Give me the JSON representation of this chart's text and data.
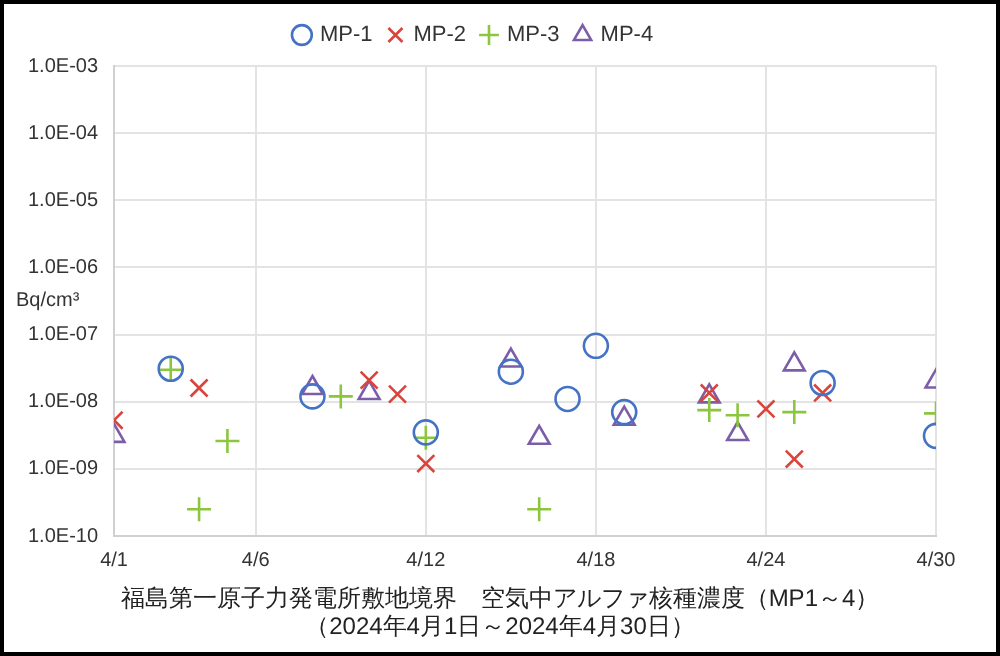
{
  "chart_data": {
    "type": "scatter",
    "title": "福島第一原子力発電所敷地境界　空気中アルファ核種濃度（MP1～4）",
    "subtitle": "（2024年4月1日～2024年4月30日）",
    "ylabel": "Bq/cm³",
    "series": [
      {
        "name": "MP-1",
        "color": "#4472c4",
        "marker": "circle",
        "x": [
          "--04-03",
          "--04-08",
          "--04-12",
          "--04-15",
          "--04-17",
          "--04-18",
          "--04-19",
          "--04-26",
          "--04-30"
        ],
        "values": [
          3.1e-08,
          1.2e-08,
          3.5e-09,
          2.8e-08,
          1.1e-08,
          6.8e-08,
          7e-09,
          1.9e-08,
          3.1e-09
        ]
      },
      {
        "name": "MP-2",
        "color": "#d9443c",
        "marker": "x",
        "x": [
          "--04-01",
          "--04-04",
          "--04-10",
          "--04-11",
          "--04-12",
          "--04-22",
          "--04-24",
          "--04-25",
          "--04-26"
        ],
        "values": [
          5.3e-09,
          1.6e-08,
          2.1e-08,
          1.3e-08,
          1.2e-09,
          1.35e-08,
          7.8e-09,
          1.4e-09,
          1.35e-08
        ]
      },
      {
        "name": "MP-3",
        "color": "#8cc63f",
        "marker": "cross",
        "x": [
          "--04-03",
          "--04-04",
          "--04-05",
          "--04-09",
          "--04-12",
          "--04-16",
          "--04-22",
          "--04-23",
          "--04-25",
          "--04-30"
        ],
        "values": [
          3e-08,
          2.5e-10,
          2.6e-09,
          1.2e-08,
          2.9e-09,
          2.5e-10,
          7.5e-09,
          6.3e-09,
          7e-09,
          6.7e-09
        ]
      },
      {
        "name": "MP-4",
        "color": "#7b5ea7",
        "marker": "triangle",
        "x": [
          "--04-01",
          "--04-08",
          "--04-10",
          "--04-15",
          "--04-16",
          "--04-19",
          "--04-22",
          "--04-23",
          "--04-25",
          "--04-30"
        ],
        "values": [
          3.1e-09,
          1.6e-08,
          1.35e-08,
          4.1e-08,
          2.9e-09,
          5.6e-09,
          1.2e-08,
          3.3e-09,
          3.6e-08,
          2e-08
        ]
      }
    ],
    "xlim": [
      "--04-01",
      "--04-30"
    ],
    "xticks": [
      {
        "value": "--04-01",
        "label": "4/1"
      },
      {
        "value": "--04-06",
        "label": "4/6"
      },
      {
        "value": "--04-12",
        "label": "4/12"
      },
      {
        "value": "--04-18",
        "label": "4/18"
      },
      {
        "value": "--04-24",
        "label": "4/24"
      },
      {
        "value": "--04-30",
        "label": "4/30"
      }
    ],
    "ylim": [
      1e-10,
      0.001
    ],
    "log": true,
    "yticks": [
      {
        "value": 1e-10,
        "label": "1.0E-10"
      },
      {
        "value": 1e-09,
        "label": "1.0E-09"
      },
      {
        "value": 1e-08,
        "label": "1.0E-08"
      },
      {
        "value": 1e-07,
        "label": "1.0E-07"
      },
      {
        "value": 1e-06,
        "label": "1.0E-06"
      },
      {
        "value": 1e-05,
        "label": "1.0E-05"
      },
      {
        "value": 0.0001,
        "label": "1.0E-04"
      },
      {
        "value": 0.001,
        "label": "1.0E-03"
      }
    ],
    "grid": true,
    "legend": "top"
  }
}
